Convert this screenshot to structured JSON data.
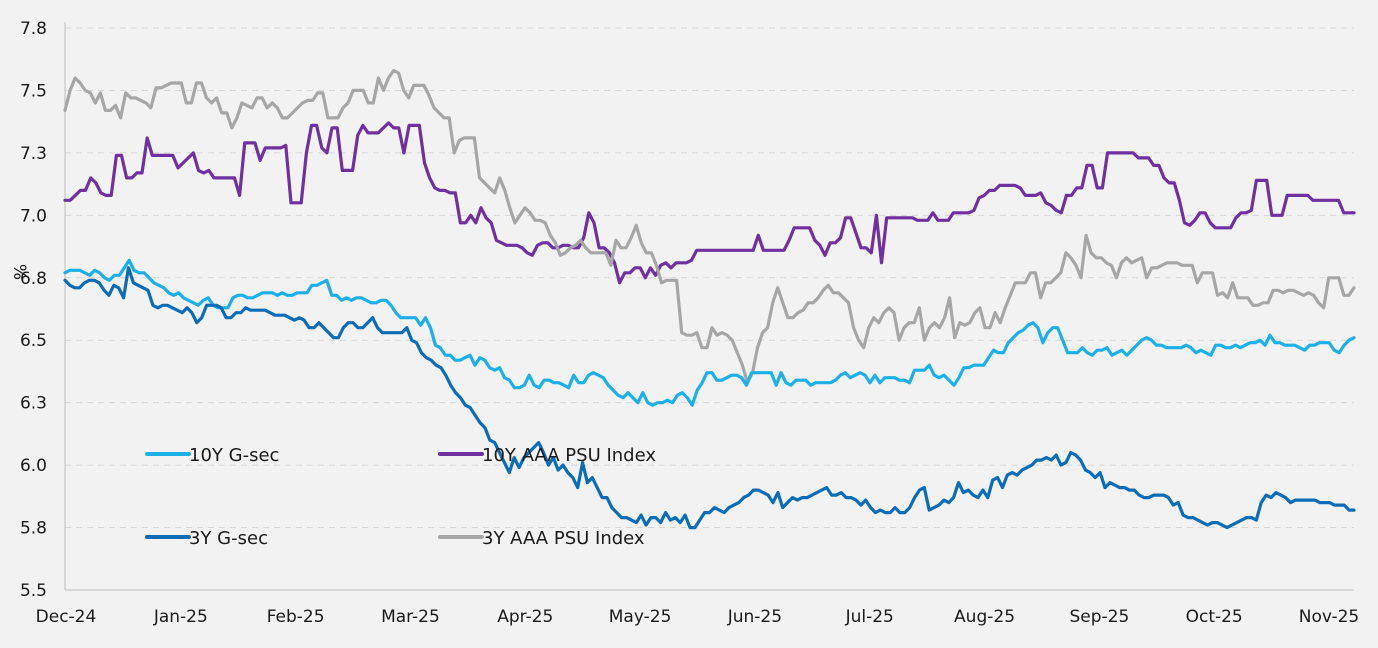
{
  "chart_data": {
    "type": "line",
    "title": "",
    "xlabel": "",
    "ylabel": "%",
    "ylim": [
      5.5,
      7.8
    ],
    "y_ticks": [
      "7.8",
      "7.5",
      "7.3",
      "7.0",
      "6.8",
      "6.5",
      "6.3",
      "6.0",
      "5.8",
      "5.5"
    ],
    "y_tick_values": [
      7.8,
      7.55,
      7.3,
      7.05,
      6.8,
      6.55,
      6.3,
      6.05,
      5.8,
      5.55
    ],
    "x_ticks": [
      "Dec-24",
      "Jan-25",
      "Feb-25",
      "Mar-25",
      "Apr-25",
      "May-25",
      "Jun-25",
      "Jul-25",
      "Aug-25",
      "Sep-25",
      "Oct-25",
      "Nov-25"
    ],
    "grid": true,
    "legend": "inside-bottom-left",
    "series": [
      {
        "name": "10Y AAA PSU Index",
        "color": "#7030a0",
        "values": [
          7.11,
          7.11,
          7.13,
          7.15,
          7.15,
          7.2,
          7.18,
          7.14,
          7.13,
          7.13,
          7.29,
          7.29,
          7.2,
          7.2,
          7.22,
          7.22,
          7.36,
          7.29,
          7.29,
          7.29,
          7.29,
          7.29,
          7.24,
          7.26,
          7.28,
          7.3,
          7.23,
          7.22,
          7.23,
          7.2,
          7.2,
          7.2,
          7.2,
          7.2,
          7.13,
          7.34,
          7.34,
          7.34,
          7.27,
          7.32,
          7.32,
          7.32,
          7.32,
          7.33,
          7.1,
          7.1,
          7.1,
          7.3,
          7.41,
          7.41,
          7.32,
          7.3,
          7.4,
          7.4,
          7.23,
          7.23,
          7.23,
          7.37,
          7.41,
          7.38,
          7.38,
          7.38,
          7.4,
          7.42,
          7.4,
          7.4,
          7.3,
          7.41,
          7.41,
          7.41,
          7.26,
          7.2,
          7.16,
          7.15,
          7.15,
          7.14,
          7.14,
          7.02,
          7.02,
          7.05,
          7.02,
          7.08,
          7.04,
          7.02,
          6.95,
          6.94,
          6.93,
          6.93,
          6.93,
          6.92,
          6.9,
          6.89,
          6.93,
          6.94,
          6.94,
          6.92,
          6.92,
          6.93,
          6.93,
          6.92,
          6.92,
          6.96,
          7.06,
          7.02,
          6.92,
          6.92,
          6.9,
          6.86,
          6.78,
          6.82,
          6.82,
          6.84,
          6.84,
          6.8,
          6.84,
          6.81,
          6.85,
          6.86,
          6.84,
          6.86,
          6.86,
          6.86,
          6.87,
          6.91,
          6.91,
          6.91,
          6.91,
          6.91,
          6.91,
          6.91,
          6.91,
          6.91,
          6.91,
          6.91,
          6.91,
          6.97,
          6.91,
          6.91,
          6.91,
          6.91,
          6.91,
          6.95,
          7.0,
          7.0,
          7.0,
          7.0,
          6.95,
          6.93,
          6.89,
          6.94,
          6.94,
          6.96,
          7.04,
          7.04,
          6.98,
          6.92,
          6.92,
          6.9,
          7.05,
          6.86,
          7.04,
          7.04,
          7.04,
          7.04,
          7.04,
          7.04,
          7.03,
          7.03,
          7.03,
          7.06,
          7.03,
          7.03,
          7.03,
          7.06,
          7.06,
          7.06,
          7.06,
          7.07,
          7.12,
          7.13,
          7.15,
          7.15,
          7.17,
          7.17,
          7.17,
          7.17,
          7.16,
          7.13,
          7.13,
          7.13,
          7.14,
          7.1,
          7.09,
          7.07,
          7.06,
          7.13,
          7.13,
          7.16,
          7.16,
          7.25,
          7.25,
          7.16,
          7.16,
          7.3,
          7.3,
          7.3,
          7.3,
          7.3,
          7.3,
          7.28,
          7.28,
          7.28,
          7.25,
          7.25,
          7.2,
          7.18,
          7.18,
          7.11,
          7.02,
          7.01,
          7.03,
          7.06,
          7.06,
          7.02,
          7.0,
          7.0,
          7.0,
          7.0,
          7.04,
          7.06,
          7.06,
          7.07,
          7.19,
          7.19,
          7.19,
          7.05,
          7.05,
          7.05,
          7.13,
          7.13,
          7.13,
          7.13,
          7.13,
          7.11,
          7.11,
          7.11,
          7.11,
          7.11,
          7.11,
          7.06,
          7.06,
          7.06
        ]
      },
      {
        "name": "3Y AAA PSU Index",
        "color": "#a6a6a6",
        "values": [
          7.47,
          7.55,
          7.6,
          7.58,
          7.55,
          7.54,
          7.5,
          7.54,
          7.47,
          7.47,
          7.49,
          7.44,
          7.54,
          7.52,
          7.52,
          7.51,
          7.5,
          7.48,
          7.56,
          7.56,
          7.57,
          7.58,
          7.58,
          7.58,
          7.5,
          7.5,
          7.58,
          7.58,
          7.52,
          7.5,
          7.52,
          7.46,
          7.46,
          7.4,
          7.44,
          7.5,
          7.49,
          7.48,
          7.52,
          7.52,
          7.48,
          7.5,
          7.48,
          7.44,
          7.44,
          7.46,
          7.48,
          7.5,
          7.51,
          7.51,
          7.54,
          7.54,
          7.44,
          7.44,
          7.44,
          7.48,
          7.5,
          7.55,
          7.55,
          7.55,
          7.5,
          7.5,
          7.6,
          7.55,
          7.6,
          7.63,
          7.62,
          7.55,
          7.52,
          7.57,
          7.57,
          7.57,
          7.53,
          7.48,
          7.46,
          7.44,
          7.44,
          7.3,
          7.35,
          7.36,
          7.36,
          7.36,
          7.2,
          7.18,
          7.16,
          7.14,
          7.2,
          7.15,
          7.08,
          7.02,
          7.05,
          7.08,
          7.06,
          7.03,
          7.03,
          7.02,
          6.97,
          6.94,
          6.89,
          6.9,
          6.92,
          6.93,
          6.95,
          6.92,
          6.9,
          6.9,
          6.9,
          6.9,
          6.85,
          6.95,
          6.92,
          6.92,
          6.96,
          7.01,
          6.94,
          6.9,
          6.9,
          6.85,
          6.78,
          6.79,
          6.79,
          6.79,
          6.58,
          6.57,
          6.57,
          6.58,
          6.52,
          6.52,
          6.6,
          6.57,
          6.58,
          6.57,
          6.55,
          6.5,
          6.45,
          6.38,
          6.42,
          6.52,
          6.58,
          6.6,
          6.7,
          6.76,
          6.7,
          6.64,
          6.64,
          6.66,
          6.67,
          6.7,
          6.7,
          6.72,
          6.75,
          6.77,
          6.74,
          6.74,
          6.72,
          6.7,
          6.6,
          6.55,
          6.52,
          6.6,
          6.64,
          6.62,
          6.66,
          6.68,
          6.66,
          6.55,
          6.6,
          6.62,
          6.62,
          6.68,
          6.55,
          6.6,
          6.62,
          6.6,
          6.64,
          6.72,
          6.56,
          6.62,
          6.61,
          6.62,
          6.66,
          6.68,
          6.6,
          6.6,
          6.66,
          6.62,
          6.68,
          6.73,
          6.78,
          6.78,
          6.78,
          6.82,
          6.82,
          6.72,
          6.78,
          6.78,
          6.8,
          6.82,
          6.9,
          6.88,
          6.85,
          6.8,
          6.97,
          6.9,
          6.88,
          6.88,
          6.86,
          6.85,
          6.8,
          6.86,
          6.88,
          6.86,
          6.87,
          6.88,
          6.8,
          6.84,
          6.84,
          6.85,
          6.86,
          6.86,
          6.86,
          6.85,
          6.85,
          6.85,
          6.78,
          6.82,
          6.82,
          6.82,
          6.73,
          6.74,
          6.72,
          6.78,
          6.72,
          6.72,
          6.72,
          6.69,
          6.69,
          6.7,
          6.7,
          6.75,
          6.75,
          6.74,
          6.75,
          6.75,
          6.74,
          6.73,
          6.74,
          6.73,
          6.7,
          6.68,
          6.8,
          6.8,
          6.8,
          6.73,
          6.73,
          6.76
        ]
      },
      {
        "name": "10Y G-sec",
        "color": "#1cb0e8",
        "values": [
          6.82,
          6.83,
          6.83,
          6.83,
          6.82,
          6.81,
          6.83,
          6.82,
          6.8,
          6.79,
          6.81,
          6.81,
          6.84,
          6.87,
          6.83,
          6.82,
          6.82,
          6.8,
          6.78,
          6.77,
          6.76,
          6.74,
          6.73,
          6.74,
          6.72,
          6.71,
          6.7,
          6.69,
          6.71,
          6.72,
          6.69,
          6.68,
          6.68,
          6.68,
          6.72,
          6.73,
          6.73,
          6.72,
          6.72,
          6.73,
          6.74,
          6.74,
          6.74,
          6.73,
          6.74,
          6.73,
          6.73,
          6.74,
          6.74,
          6.74,
          6.77,
          6.77,
          6.78,
          6.79,
          6.73,
          6.73,
          6.71,
          6.72,
          6.71,
          6.72,
          6.72,
          6.71,
          6.7,
          6.7,
          6.71,
          6.71,
          6.69,
          6.66,
          6.64,
          6.64,
          6.64,
          6.64,
          6.61,
          6.64,
          6.6,
          6.53,
          6.52,
          6.49,
          6.49,
          6.47,
          6.47,
          6.48,
          6.49,
          6.45,
          6.48,
          6.47,
          6.44,
          6.43,
          6.44,
          6.4,
          6.39,
          6.36,
          6.36,
          6.37,
          6.41,
          6.37,
          6.36,
          6.39,
          6.39,
          6.38,
          6.38,
          6.37,
          6.36,
          6.41,
          6.38,
          6.38,
          6.41,
          6.42,
          6.41,
          6.4,
          6.37,
          6.35,
          6.33,
          6.32,
          6.34,
          6.32,
          6.3,
          6.34,
          6.3,
          6.29,
          6.3,
          6.3,
          6.31,
          6.3,
          6.33,
          6.34,
          6.32,
          6.29,
          6.35,
          6.38,
          6.42,
          6.42,
          6.39,
          6.39,
          6.4,
          6.41,
          6.41,
          6.4,
          6.37,
          6.42,
          6.42,
          6.42,
          6.42,
          6.42,
          6.37,
          6.42,
          6.38,
          6.37,
          6.39,
          6.39,
          6.39,
          6.37,
          6.38,
          6.38,
          6.38,
          6.38,
          6.39,
          6.41,
          6.42,
          6.4,
          6.41,
          6.42,
          6.41,
          6.38,
          6.41,
          6.38,
          6.4,
          6.4,
          6.4,
          6.39,
          6.39,
          6.38,
          6.43,
          6.43,
          6.43,
          6.45,
          6.41,
          6.4,
          6.41,
          6.39,
          6.37,
          6.4,
          6.44,
          6.44,
          6.45,
          6.45,
          6.45,
          6.48,
          6.51,
          6.5,
          6.5,
          6.54,
          6.56,
          6.58,
          6.59,
          6.61,
          6.62,
          6.6,
          6.54,
          6.58,
          6.6,
          6.6,
          6.55,
          6.5,
          6.5,
          6.5,
          6.52,
          6.5,
          6.49,
          6.51,
          6.51,
          6.52,
          6.49,
          6.5,
          6.51,
          6.49,
          6.51,
          6.53,
          6.55,
          6.56,
          6.55,
          6.53,
          6.53,
          6.52,
          6.52,
          6.52,
          6.52,
          6.53,
          6.52,
          6.5,
          6.51,
          6.5,
          6.49,
          6.53,
          6.53,
          6.52,
          6.52,
          6.53,
          6.52,
          6.53,
          6.54,
          6.54,
          6.55,
          6.53,
          6.57,
          6.54,
          6.54,
          6.53,
          6.53,
          6.53,
          6.52,
          6.51,
          6.53,
          6.53,
          6.54,
          6.54,
          6.54,
          6.51,
          6.5,
          6.53,
          6.55,
          6.56
        ]
      },
      {
        "name": "3Y G-sec",
        "color": "#0b6cb8",
        "values": [
          6.79,
          6.77,
          6.76,
          6.76,
          6.78,
          6.79,
          6.79,
          6.78,
          6.75,
          6.73,
          6.77,
          6.76,
          6.72,
          6.84,
          6.78,
          6.77,
          6.76,
          6.75,
          6.69,
          6.68,
          6.69,
          6.69,
          6.68,
          6.67,
          6.66,
          6.68,
          6.66,
          6.62,
          6.64,
          6.69,
          6.69,
          6.69,
          6.68,
          6.64,
          6.64,
          6.66,
          6.66,
          6.68,
          6.67,
          6.67,
          6.67,
          6.67,
          6.66,
          6.65,
          6.65,
          6.65,
          6.64,
          6.63,
          6.64,
          6.63,
          6.6,
          6.6,
          6.62,
          6.6,
          6.58,
          6.56,
          6.56,
          6.6,
          6.62,
          6.62,
          6.6,
          6.6,
          6.62,
          6.64,
          6.6,
          6.58,
          6.58,
          6.58,
          6.58,
          6.58,
          6.6,
          6.55,
          6.54,
          6.5,
          6.48,
          6.47,
          6.45,
          6.44,
          6.41,
          6.37,
          6.34,
          6.32,
          6.29,
          6.28,
          6.25,
          6.22,
          6.2,
          6.15,
          6.14,
          6.1,
          6.06,
          6.02,
          6.08,
          6.04,
          6.08,
          6.1,
          6.12,
          6.14,
          6.1,
          6.05,
          6.08,
          6.03,
          6.05,
          6.02,
          6.0,
          5.96,
          6.06,
          5.98,
          6.0,
          5.96,
          5.92,
          5.92,
          5.88,
          5.86,
          5.84,
          5.84,
          5.83,
          5.82,
          5.85,
          5.81,
          5.84,
          5.84,
          5.82,
          5.86,
          5.83,
          5.84,
          5.82,
          5.85,
          5.8,
          5.8,
          5.83,
          5.86,
          5.86,
          5.88,
          5.87,
          5.86,
          5.88,
          5.89,
          5.9,
          5.92,
          5.93,
          5.95,
          5.95,
          5.94,
          5.93,
          5.9,
          5.94,
          5.88,
          5.9,
          5.92,
          5.91,
          5.92,
          5.92,
          5.93,
          5.94,
          5.95,
          5.96,
          5.93,
          5.93,
          5.94,
          5.92,
          5.92,
          5.91,
          5.89,
          5.91,
          5.88,
          5.86,
          5.87,
          5.86,
          5.86,
          5.88,
          5.86,
          5.86,
          5.88,
          5.92,
          5.95,
          5.96,
          5.87,
          5.88,
          5.89,
          5.91,
          5.9,
          5.92,
          5.98,
          5.94,
          5.95,
          5.93,
          5.92,
          5.95,
          5.92,
          5.99,
          6.0,
          5.96,
          6.01,
          6.02,
          6.01,
          6.03,
          6.04,
          6.05,
          6.07,
          6.07,
          6.08,
          6.07,
          6.09,
          6.05,
          6.06,
          6.1,
          6.09,
          6.07,
          6.03,
          6.02,
          6.0,
          6.02,
          5.96,
          5.98,
          5.97,
          5.96,
          5.96,
          5.95,
          5.95,
          5.93,
          5.92,
          5.92,
          5.93,
          5.93,
          5.93,
          5.92,
          5.89,
          5.9,
          5.85,
          5.84,
          5.84,
          5.83,
          5.82,
          5.81,
          5.82,
          5.82,
          5.81,
          5.8,
          5.81,
          5.82,
          5.83,
          5.84,
          5.84,
          5.83,
          5.9,
          5.93,
          5.92,
          5.94,
          5.93,
          5.92,
          5.9,
          5.91,
          5.91,
          5.91,
          5.91,
          5.91,
          5.9,
          5.9,
          5.9,
          5.89,
          5.89,
          5.89,
          5.87,
          5.87
        ]
      }
    ],
    "legend_entries": [
      "10Y G-sec",
      "10Y AAA PSU Index",
      "3Y G-sec",
      "3Y AAA PSU Index"
    ]
  },
  "colors": {
    "background": "#f2f2f2",
    "grid": "#d6d6d6",
    "text": "#1a1a1a"
  }
}
